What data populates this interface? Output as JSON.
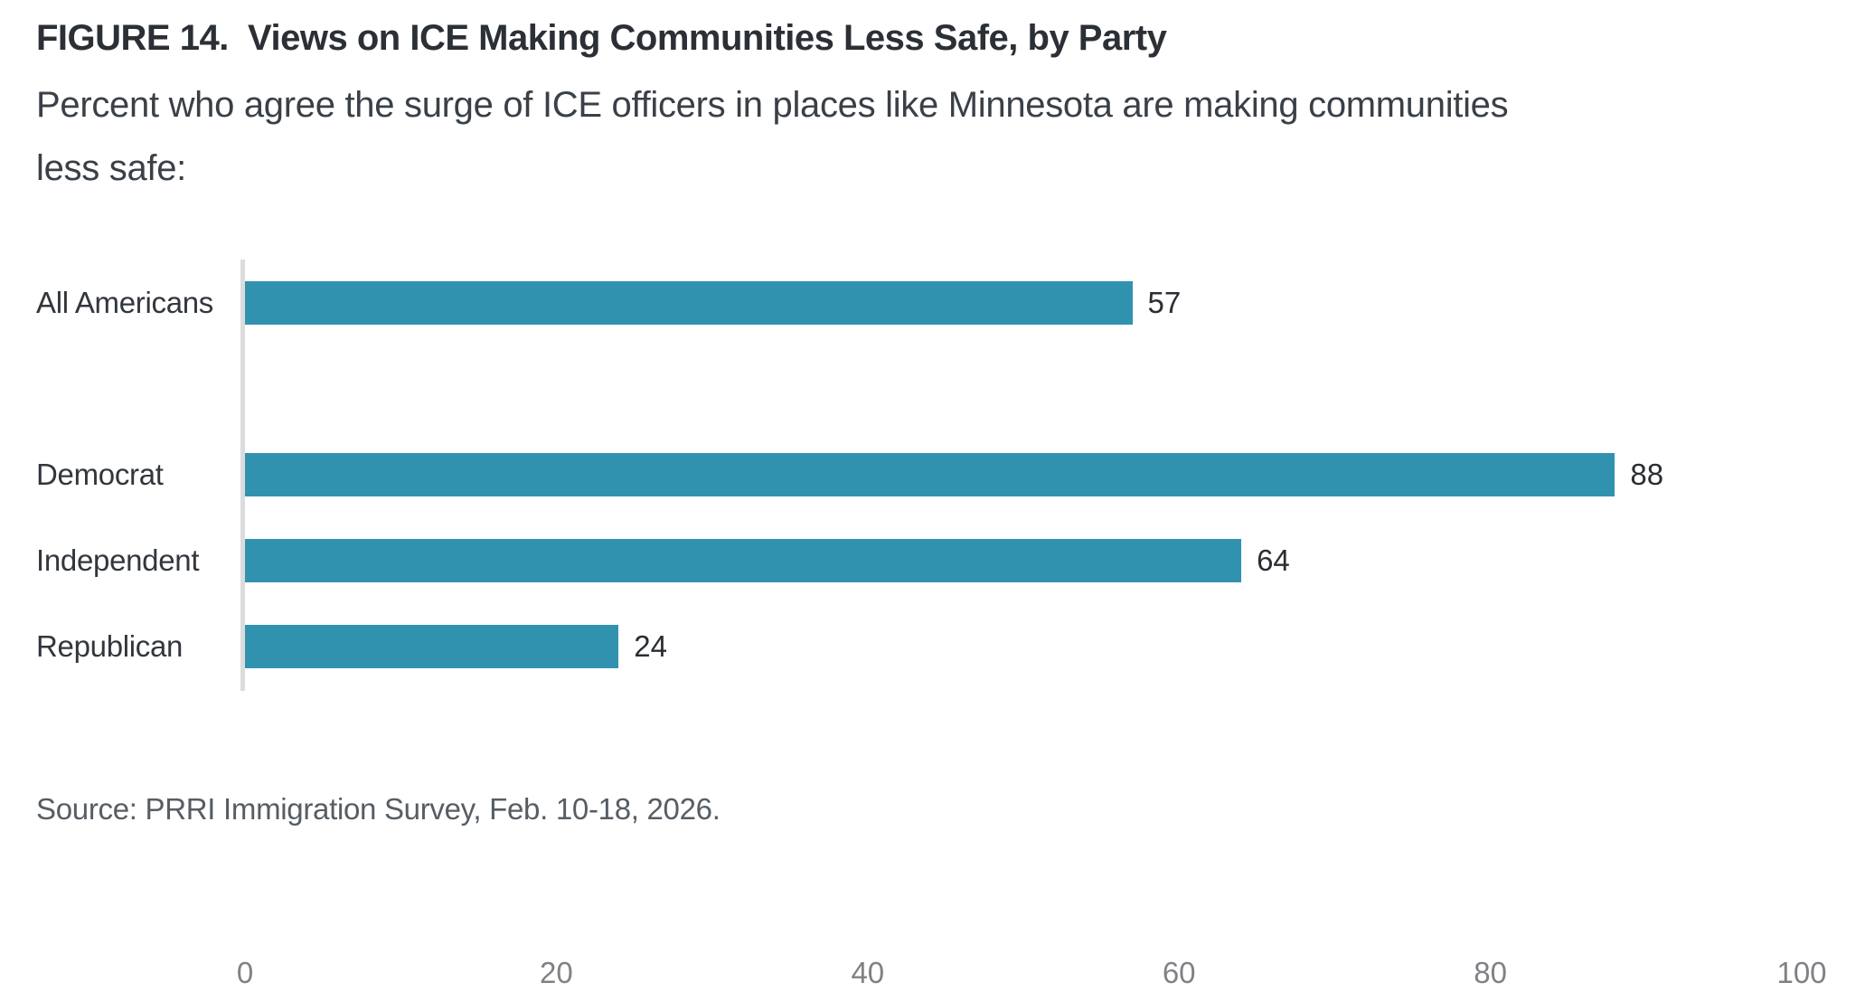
{
  "header": {
    "title": "FIGURE 14.  Views on ICE Making Communities Less Safe, by Party",
    "subtitle_lines": [
      "Percent who agree the surge of ICE officers in places like Minnesota are making communities",
      "less safe:"
    ]
  },
  "chart_data": {
    "type": "bar",
    "orientation": "horizontal",
    "title": "FIGURE 14.  Views on ICE Making Communities Less Safe, by Party",
    "subtitle": "Percent who agree the surge of ICE officers in places like Minnesota are making communities less safe:",
    "categories": [
      "All Americans",
      "Democrat",
      "Independent",
      "Republican"
    ],
    "values": [
      57,
      88,
      64,
      24
    ],
    "value_labels_shown": true,
    "xlabel": "",
    "ylabel": "",
    "xlim": [
      0,
      100
    ],
    "xticks": [
      0,
      20,
      40,
      60,
      80,
      100
    ],
    "grid": false,
    "legend": false,
    "gap_after_index": 0,
    "bar_color": "#3192b0",
    "axis_line_color": "#dcdcde",
    "tick_label_color": "#7f8185"
  },
  "footer": {
    "source": "Source: PRRI Immigration Survey, Feb. 10-18, 2026."
  }
}
